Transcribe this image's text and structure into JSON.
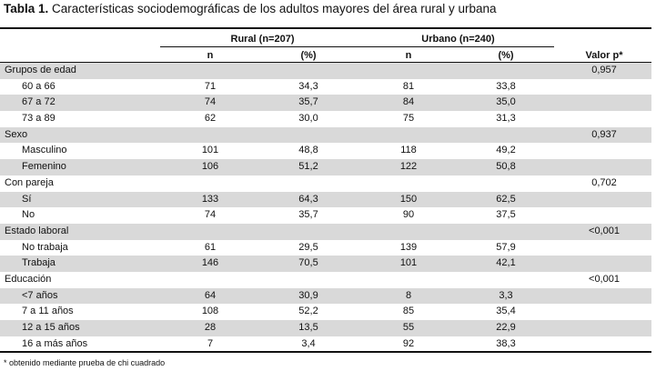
{
  "title": {
    "prefix": "Tabla 1.",
    "text": "Características sociodemográficas de los adultos mayores del área rural y urbana"
  },
  "header": {
    "rural_group": "Rural (n=207)",
    "urban_group": "Urbano (n=240)",
    "n_label": "n",
    "pct_label": "(%)",
    "pvalue_label": "Valor p*"
  },
  "rows": [
    {
      "kind": "group",
      "label": "Grupos de edad",
      "rural_n": "",
      "rural_pct": "",
      "urban_n": "",
      "urban_pct": "",
      "p": "0,957"
    },
    {
      "kind": "item",
      "label": "60 a 66",
      "rural_n": "71",
      "rural_pct": "34,3",
      "urban_n": "81",
      "urban_pct": "33,8",
      "p": ""
    },
    {
      "kind": "item",
      "label": "67 a 72",
      "rural_n": "74",
      "rural_pct": "35,7",
      "urban_n": "84",
      "urban_pct": "35,0",
      "p": ""
    },
    {
      "kind": "item",
      "label": "73 a 89",
      "rural_n": "62",
      "rural_pct": "30,0",
      "urban_n": "75",
      "urban_pct": "31,3",
      "p": ""
    },
    {
      "kind": "group",
      "label": "Sexo",
      "rural_n": "",
      "rural_pct": "",
      "urban_n": "",
      "urban_pct": "",
      "p": "0,937"
    },
    {
      "kind": "item",
      "label": "Masculino",
      "rural_n": "101",
      "rural_pct": "48,8",
      "urban_n": "118",
      "urban_pct": "49,2",
      "p": ""
    },
    {
      "kind": "item",
      "label": "Femenino",
      "rural_n": "106",
      "rural_pct": "51,2",
      "urban_n": "122",
      "urban_pct": "50,8",
      "p": ""
    },
    {
      "kind": "group",
      "label": "Con pareja",
      "rural_n": "",
      "rural_pct": "",
      "urban_n": "",
      "urban_pct": "",
      "p": "0,702"
    },
    {
      "kind": "item",
      "label": "Sí",
      "rural_n": "133",
      "rural_pct": "64,3",
      "urban_n": "150",
      "urban_pct": "62,5",
      "p": ""
    },
    {
      "kind": "item",
      "label": "No",
      "rural_n": "74",
      "rural_pct": "35,7",
      "urban_n": "90",
      "urban_pct": "37,5",
      "p": ""
    },
    {
      "kind": "group",
      "label": "Estado laboral",
      "rural_n": "",
      "rural_pct": "",
      "urban_n": "",
      "urban_pct": "",
      "p": "<0,001"
    },
    {
      "kind": "item",
      "label": "No trabaja",
      "rural_n": "61",
      "rural_pct": "29,5",
      "urban_n": "139",
      "urban_pct": "57,9",
      "p": ""
    },
    {
      "kind": "item",
      "label": "Trabaja",
      "rural_n": "146",
      "rural_pct": "70,5",
      "urban_n": "101",
      "urban_pct": "42,1",
      "p": ""
    },
    {
      "kind": "group",
      "label": "Educación",
      "rural_n": "",
      "rural_pct": "",
      "urban_n": "",
      "urban_pct": "",
      "p": "<0,001"
    },
    {
      "kind": "item",
      "label": "<7 años",
      "rural_n": "64",
      "rural_pct": "30,9",
      "urban_n": "8",
      "urban_pct": "3,3",
      "p": ""
    },
    {
      "kind": "item",
      "label": "7 a 11 años",
      "rural_n": "108",
      "rural_pct": "52,2",
      "urban_n": "85",
      "urban_pct": "35,4",
      "p": ""
    },
    {
      "kind": "item",
      "label": "12 a 15 años",
      "rural_n": "28",
      "rural_pct": "13,5",
      "urban_n": "55",
      "urban_pct": "22,9",
      "p": ""
    },
    {
      "kind": "item",
      "label": "16 a más años",
      "rural_n": "7",
      "rural_pct": "3,4",
      "urban_n": "92",
      "urban_pct": "38,3",
      "p": ""
    }
  ],
  "footnote": "* obtenido mediante prueba de chi cuadrado"
}
